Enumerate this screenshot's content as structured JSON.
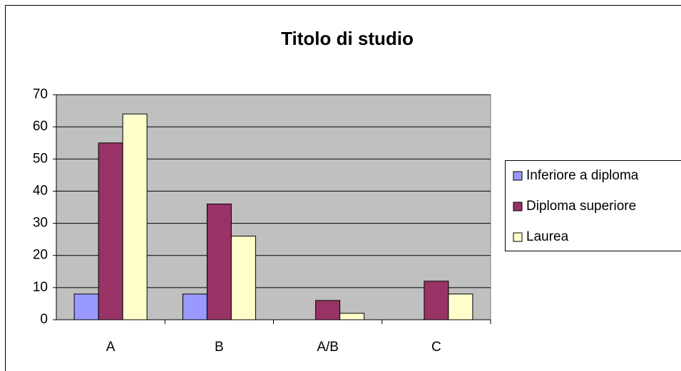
{
  "chart_data": {
    "type": "bar",
    "title": "Titolo di studio",
    "categories": [
      "A",
      "B",
      "A/B",
      "C"
    ],
    "series": [
      {
        "name": "Inferiore a diploma",
        "color": "#9999ff",
        "values": [
          8,
          8,
          0,
          0
        ]
      },
      {
        "name": "Diploma superiore",
        "color": "#993366",
        "values": [
          55,
          36,
          6,
          12
        ]
      },
      {
        "name": "Laurea",
        "color": "#ffffcc",
        "values": [
          64,
          26,
          2,
          8
        ]
      }
    ],
    "ylim": [
      0,
      70
    ],
    "yticks": [
      0,
      10,
      20,
      30,
      40,
      50,
      60,
      70
    ],
    "grid": true,
    "legend": "right"
  }
}
